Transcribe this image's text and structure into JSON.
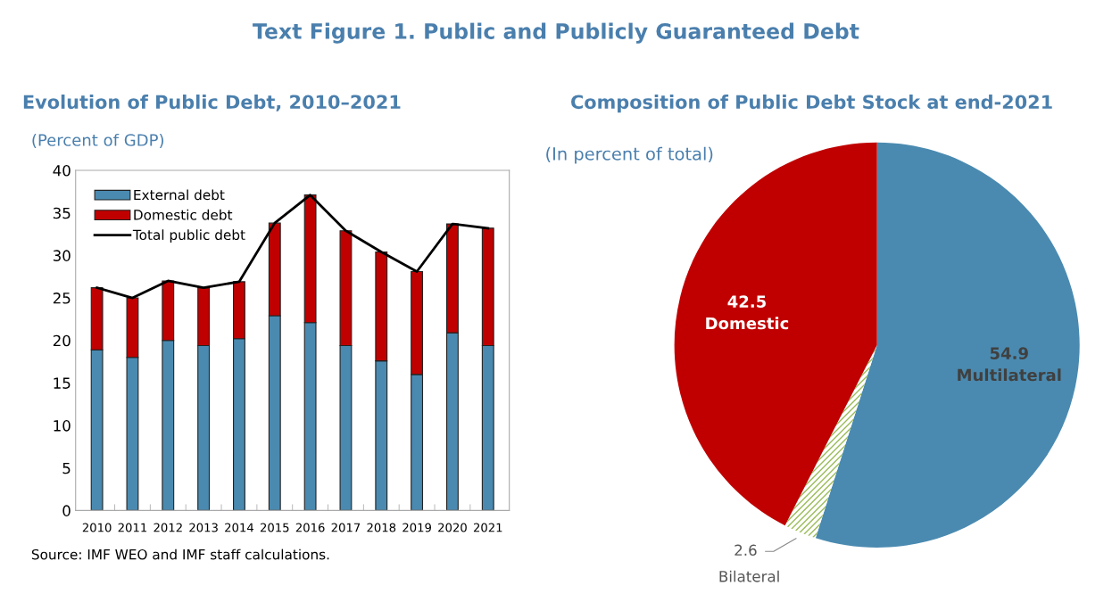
{
  "chart_data": [
    {
      "type": "bar",
      "title": "Text Figure 1. Public and Publicly Guaranteed Debt",
      "subtitle": "Evolution of Public Debt, 2010–2021",
      "ylabel": "(Percent of GDP)",
      "categories": [
        "2010",
        "2011",
        "2012",
        "2013",
        "2014",
        "2015",
        "2016",
        "2017",
        "2018",
        "2019",
        "2020",
        "2021"
      ],
      "stacked": true,
      "series": [
        {
          "name": "External debt",
          "color": "#4a8ab0",
          "values": [
            18.9,
            18.0,
            20.0,
            19.4,
            20.2,
            22.9,
            22.1,
            19.4,
            17.6,
            16.0,
            20.9,
            19.4
          ]
        },
        {
          "name": "Domestic debt",
          "color": "#c00000",
          "values": [
            7.3,
            7.0,
            7.0,
            6.8,
            6.7,
            10.9,
            15.0,
            13.5,
            12.8,
            12.1,
            12.8,
            13.8
          ]
        },
        {
          "name": "Total public debt",
          "type": "line",
          "color": "#000000",
          "values": [
            26.2,
            25.0,
            27.0,
            26.2,
            26.9,
            33.8,
            37.1,
            32.9,
            30.4,
            28.1,
            33.7,
            33.2
          ]
        }
      ],
      "ylim": [
        0,
        40
      ],
      "yticks": [
        0,
        5,
        10,
        15,
        20,
        25,
        30,
        35,
        40
      ],
      "grid": false,
      "legend": "top left",
      "annotations": [
        "Source: IMF WEO and IMF staff calculations."
      ]
    },
    {
      "type": "pie",
      "title": "Composition of Public Debt Stock at end-2021",
      "subtitle": "(In percent of total)",
      "categories": [
        "Multilateral",
        "Bilateral",
        "Domestic"
      ],
      "values": [
        54.9,
        2.6,
        42.5
      ],
      "colors": [
        "#4a8ab0",
        "#9bbb59",
        "#c00000"
      ],
      "data_labels": true
    }
  ]
}
